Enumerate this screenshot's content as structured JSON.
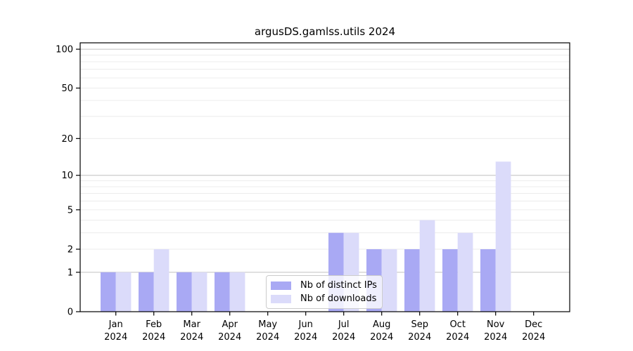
{
  "chart_data": {
    "type": "bar",
    "title": "argusDS.gamlss.utils 2024",
    "categories": [
      "Jan",
      "Feb",
      "Mar",
      "Apr",
      "May",
      "Jun",
      "Jul",
      "Aug",
      "Sep",
      "Oct",
      "Nov",
      "Dec"
    ],
    "year_label": "2024",
    "series": [
      {
        "name": "Nb of distinct IPs",
        "color": "#a9a9f4",
        "values": [
          1,
          1,
          1,
          1,
          0,
          0,
          3,
          2,
          2,
          2,
          2,
          0
        ]
      },
      {
        "name": "Nb of downloads",
        "color": "#dbdbfa",
        "values": [
          1,
          2,
          1,
          1,
          0,
          0,
          3,
          2,
          4,
          3,
          13,
          0
        ]
      }
    ],
    "y_axis": {
      "scale": "log10(value+1)",
      "tick_values": [
        0,
        1,
        2,
        5,
        10,
        20,
        50,
        100
      ],
      "tick_labels": [
        "0",
        "1",
        "2",
        "5",
        "10",
        "20",
        "50",
        "100"
      ],
      "major_gridlines": [
        1,
        10,
        100
      ],
      "minor_gridlines": [
        2,
        3,
        4,
        5,
        6,
        7,
        8,
        9,
        20,
        30,
        40,
        50,
        60,
        70,
        80,
        90
      ],
      "ylim": [
        0,
        112
      ]
    },
    "legend": {
      "position": "bottom-center"
    },
    "colors": {
      "axis": "#000000",
      "tick_text": "#000000",
      "gridline_major": "#c0c0c0",
      "gridline_minor": "#ececec"
    }
  }
}
